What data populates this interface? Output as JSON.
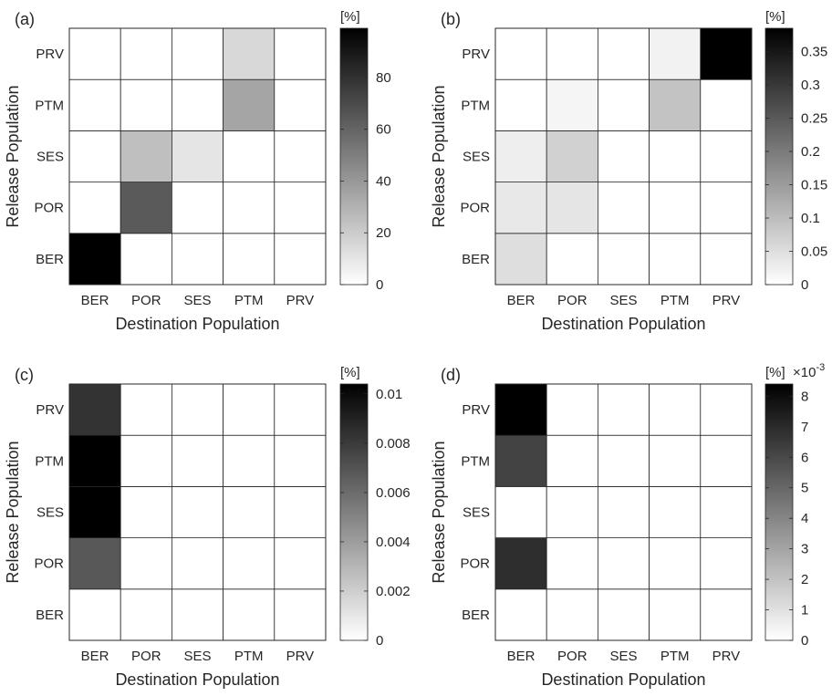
{
  "chart_data": [
    {
      "panel_label": "(a)",
      "type": "heatmap",
      "xlabel": "Destination Population",
      "ylabel": "Release Population",
      "x_categories": [
        "BER",
        "POR",
        "SES",
        "PTM",
        "PRV"
      ],
      "y_categories": [
        "BER",
        "POR",
        "SES",
        "PTM",
        "PRV"
      ],
      "values": [
        [
          99,
          0,
          0,
          0,
          0
        ],
        [
          0,
          64,
          0,
          0,
          0
        ],
        [
          0,
          25,
          10,
          0,
          0
        ],
        [
          0,
          0,
          0,
          35,
          0
        ],
        [
          0,
          0,
          0,
          15,
          0
        ]
      ],
      "colorbar": {
        "label": "[%]",
        "exponent": "",
        "range": [
          0,
          99
        ],
        "ticks": [
          0,
          20,
          40,
          60,
          80
        ],
        "tick_labels": [
          "0",
          "20",
          "40",
          "60",
          "80"
        ]
      }
    },
    {
      "panel_label": "(b)",
      "type": "heatmap",
      "xlabel": "Destination Population",
      "ylabel": "Release Population",
      "x_categories": [
        "BER",
        "POR",
        "SES",
        "PTM",
        "PRV"
      ],
      "y_categories": [
        "BER",
        "POR",
        "SES",
        "PTM",
        "PRV"
      ],
      "values": [
        [
          0.05,
          0,
          0,
          0,
          0
        ],
        [
          0.035,
          0.04,
          0,
          0,
          0
        ],
        [
          0.025,
          0.07,
          0,
          0,
          0
        ],
        [
          0,
          0.015,
          0,
          0.09,
          0
        ],
        [
          0,
          0,
          0,
          0.02,
          0.385
        ]
      ],
      "colorbar": {
        "label": "[%]",
        "exponent": "",
        "range": [
          0,
          0.385
        ],
        "ticks": [
          0,
          0.05,
          0.1,
          0.15,
          0.2,
          0.25,
          0.3,
          0.35
        ],
        "tick_labels": [
          "0",
          "0.05",
          "0.1",
          "0.15",
          "0.2",
          "0.25",
          "0.3",
          "0.35"
        ]
      }
    },
    {
      "panel_label": "(c)",
      "type": "heatmap",
      "xlabel": "Destination Population",
      "ylabel": "Release Population",
      "x_categories": [
        "BER",
        "POR",
        "SES",
        "PTM",
        "PRV"
      ],
      "y_categories": [
        "BER",
        "POR",
        "SES",
        "PTM",
        "PRV"
      ],
      "values": [
        [
          0,
          0,
          0,
          0,
          0
        ],
        [
          0.0068,
          0,
          0,
          0,
          0
        ],
        [
          0.0104,
          0,
          0,
          0,
          0
        ],
        [
          0.0104,
          0,
          0,
          0,
          0
        ],
        [
          0.0083,
          0,
          0,
          0,
          0
        ]
      ],
      "colorbar": {
        "label": "[%]",
        "exponent": "",
        "range": [
          0,
          0.0104
        ],
        "ticks": [
          0,
          0.002,
          0.004,
          0.006,
          0.008,
          0.01
        ],
        "tick_labels": [
          "0",
          "0.002",
          "0.004",
          "0.006",
          "0.008",
          "0.01"
        ]
      }
    },
    {
      "panel_label": "(d)",
      "type": "heatmap",
      "xlabel": "Destination Population",
      "ylabel": "Release Population",
      "x_categories": [
        "BER",
        "POR",
        "SES",
        "PTM",
        "PRV"
      ],
      "y_categories": [
        "BER",
        "POR",
        "SES",
        "PTM",
        "PRV"
      ],
      "values": [
        [
          0,
          0,
          0,
          0,
          0
        ],
        [
          6.9,
          0,
          0,
          0,
          0
        ],
        [
          0,
          0,
          0,
          0,
          0
        ],
        [
          6.2,
          0,
          0,
          0,
          0
        ],
        [
          8.4,
          0,
          0,
          0,
          0
        ]
      ],
      "colorbar": {
        "label": "[%]",
        "exponent": "×10-3",
        "range": [
          0,
          8.4
        ],
        "ticks": [
          0,
          1,
          2,
          3,
          4,
          5,
          6,
          7,
          8
        ],
        "tick_labels": [
          "0",
          "1",
          "2",
          "3",
          "4",
          "5",
          "6",
          "7",
          "8"
        ]
      }
    }
  ]
}
